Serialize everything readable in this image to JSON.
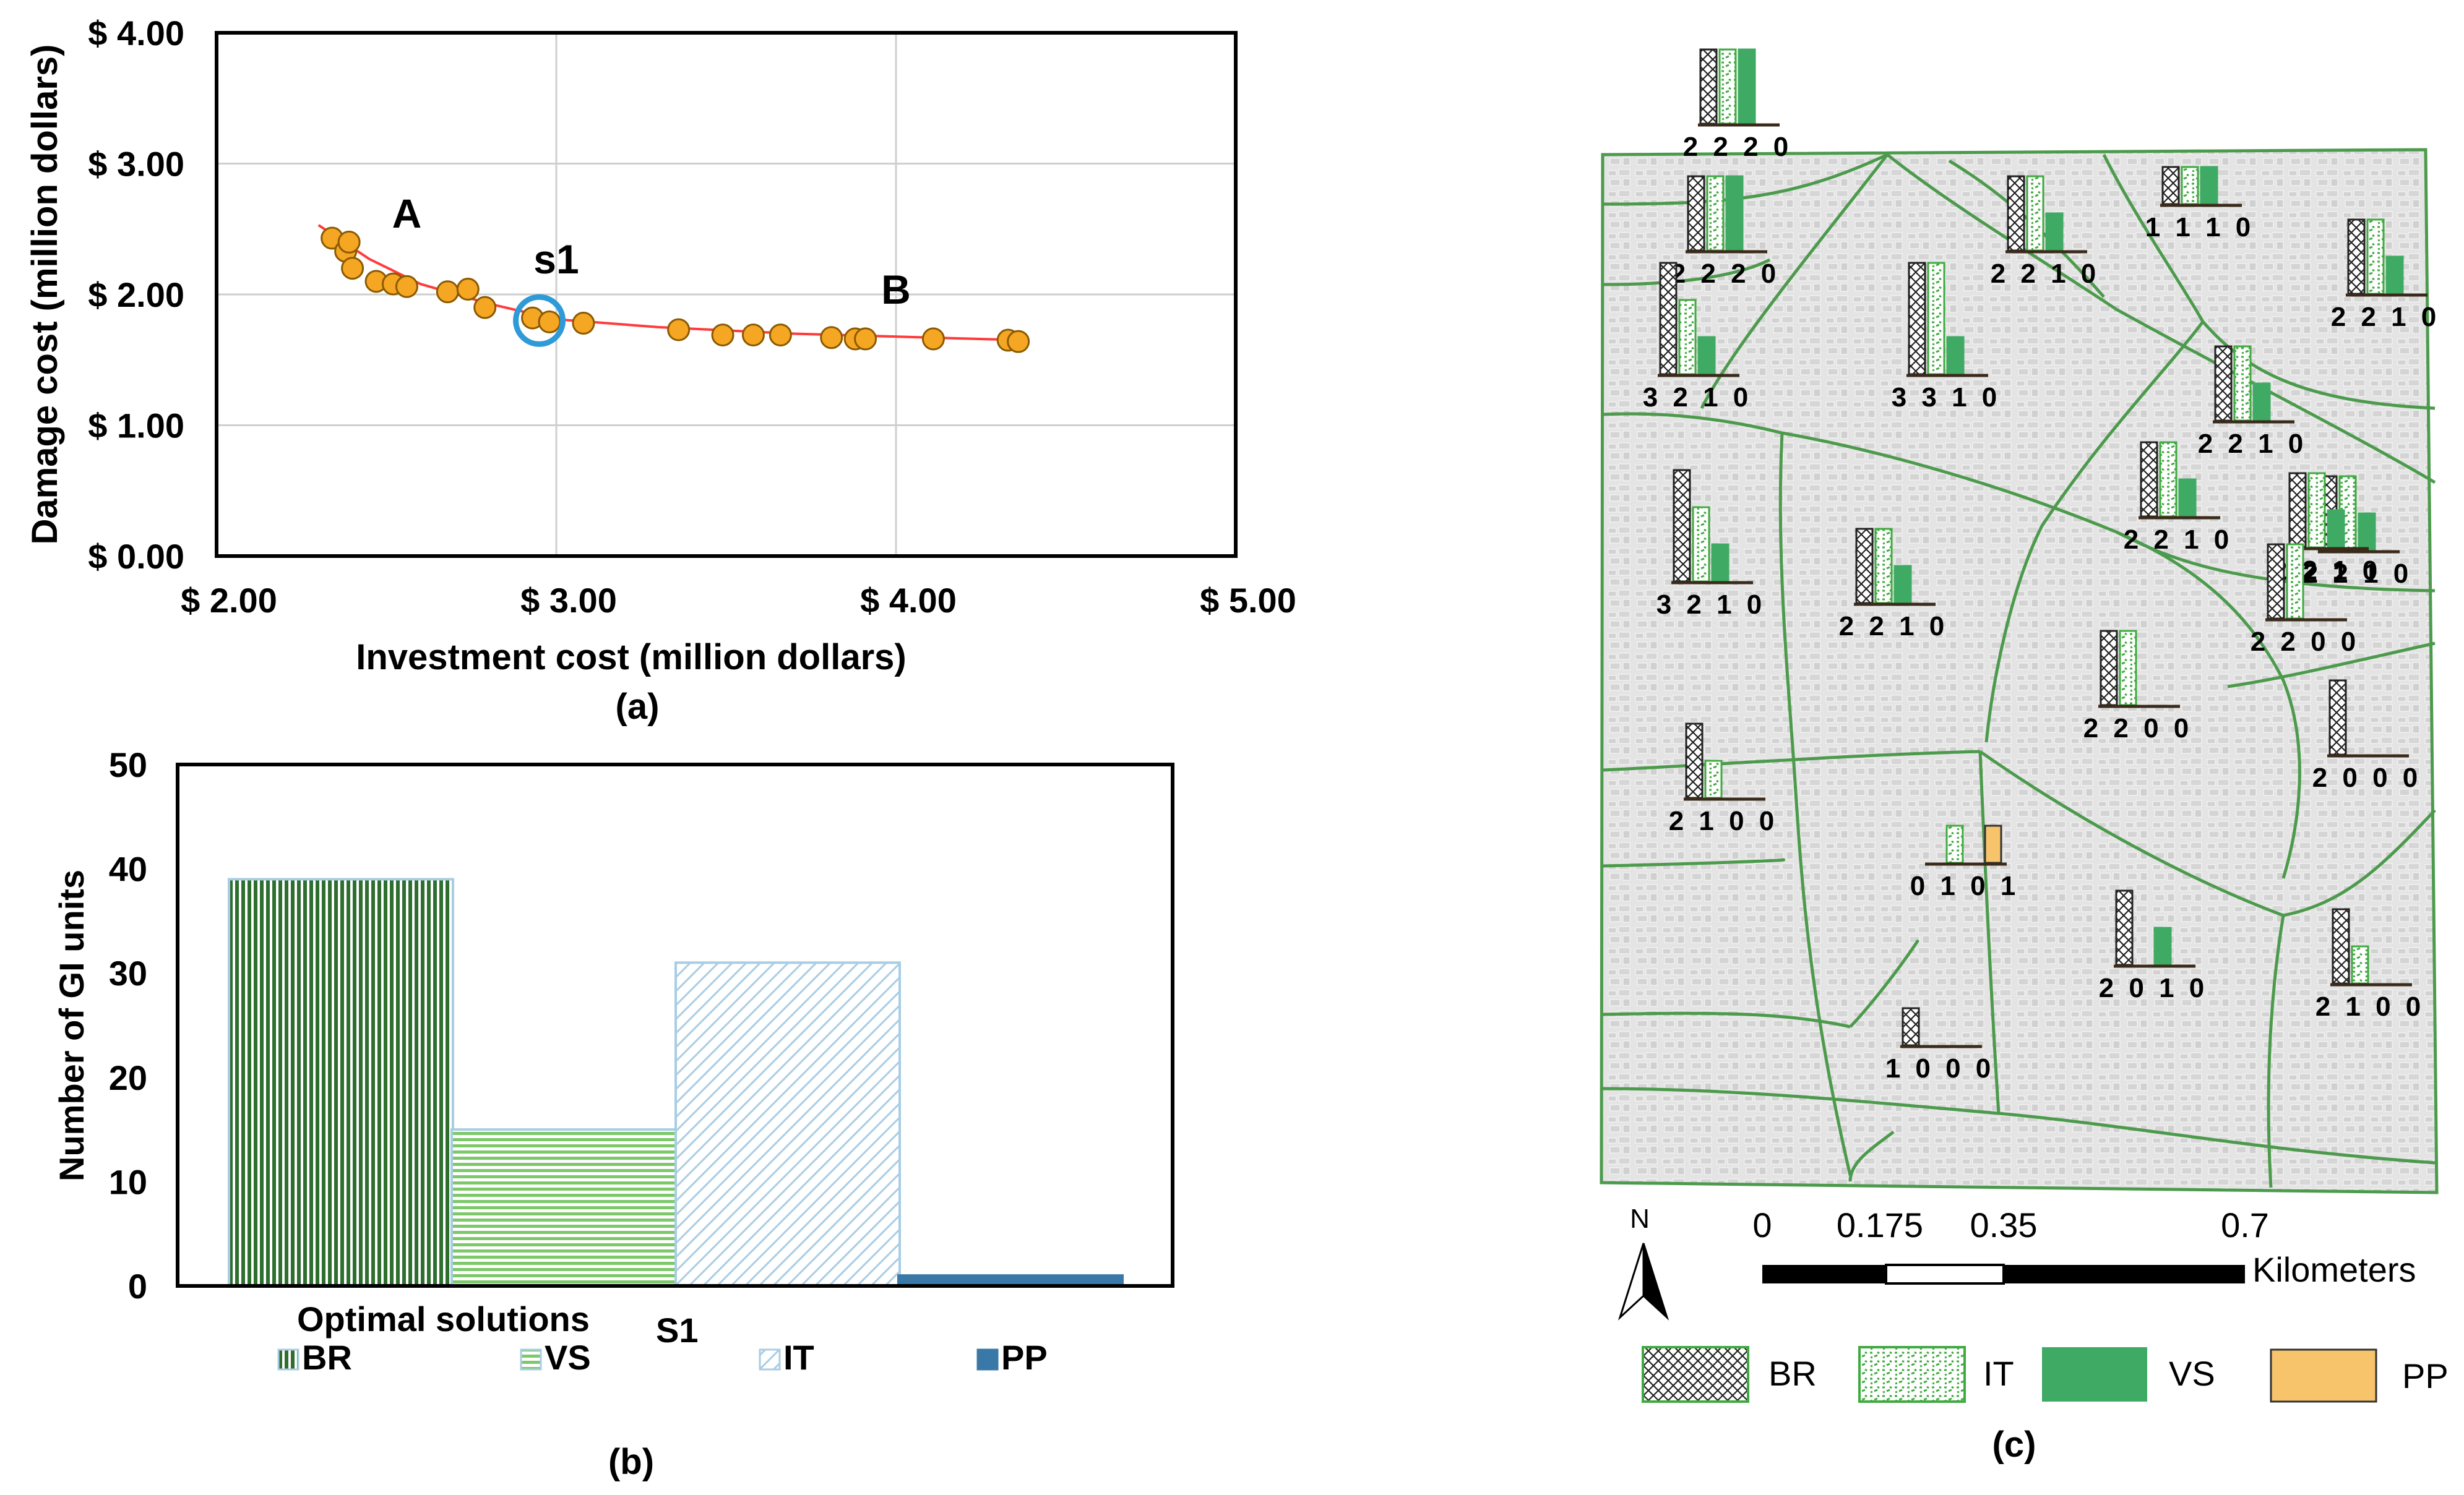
{
  "colors": {
    "point_fill": "#F5A623",
    "point_stroke": "#8A5A00",
    "trend_line": "#FF3B3B",
    "highlight_ring": "#2E9AD8",
    "br_green": "#2E6E2E",
    "vs_green": "#7DC96A",
    "it_blue": "#A9CDE4",
    "pp_blue": "#3A78A8",
    "map_bg": "#E6E6E6",
    "road_green": "#4C9A4C",
    "vs_bar": "#3FAA63",
    "pp_bar": "#F7C46C"
  },
  "chart_data": [
    {
      "type": "scatter",
      "caption": "(a)",
      "title": "",
      "xlabel": "Investment cost (million dollars)",
      "ylabel": "Damage cost (million dollars)",
      "xlim": [
        2.0,
        5.0
      ],
      "ylim": [
        0.0,
        4.0
      ],
      "xticks": [
        2.0,
        3.0,
        4.0,
        5.0
      ],
      "yticks": [
        0.0,
        1.0,
        2.0,
        3.0,
        4.0
      ],
      "xtick_labels": [
        "$ 2.00",
        "$ 3.00",
        "$ 4.00",
        "$ 5.00"
      ],
      "ytick_labels": [
        "$ 0.00",
        "$ 1.00",
        "$ 2.00",
        "$ 3.00",
        "$ 4.00"
      ],
      "grid": true,
      "points": [
        {
          "x": 2.34,
          "y": 2.43
        },
        {
          "x": 2.38,
          "y": 2.33
        },
        {
          "x": 2.39,
          "y": 2.4
        },
        {
          "x": 2.4,
          "y": 2.2
        },
        {
          "x": 2.47,
          "y": 2.1
        },
        {
          "x": 2.52,
          "y": 2.08
        },
        {
          "x": 2.56,
          "y": 2.06
        },
        {
          "x": 2.68,
          "y": 2.02
        },
        {
          "x": 2.74,
          "y": 2.04
        },
        {
          "x": 2.79,
          "y": 1.9
        },
        {
          "x": 2.93,
          "y": 1.82
        },
        {
          "x": 2.98,
          "y": 1.79
        },
        {
          "x": 3.08,
          "y": 1.78
        },
        {
          "x": 3.36,
          "y": 1.73
        },
        {
          "x": 3.49,
          "y": 1.69
        },
        {
          "x": 3.58,
          "y": 1.69
        },
        {
          "x": 3.66,
          "y": 1.69
        },
        {
          "x": 3.81,
          "y": 1.67
        },
        {
          "x": 3.88,
          "y": 1.66
        },
        {
          "x": 3.91,
          "y": 1.66
        },
        {
          "x": 4.11,
          "y": 1.66
        },
        {
          "x": 4.33,
          "y": 1.65
        },
        {
          "x": 4.36,
          "y": 1.64
        }
      ],
      "trend_line": [
        {
          "x": 2.3,
          "y": 2.53
        },
        {
          "x": 2.45,
          "y": 2.27
        },
        {
          "x": 2.6,
          "y": 2.08
        },
        {
          "x": 2.8,
          "y": 1.93
        },
        {
          "x": 3.0,
          "y": 1.81
        },
        {
          "x": 3.3,
          "y": 1.75
        },
        {
          "x": 3.7,
          "y": 1.7
        },
        {
          "x": 4.1,
          "y": 1.67
        },
        {
          "x": 4.38,
          "y": 1.65
        }
      ],
      "highlight": {
        "x": 2.95,
        "y": 1.8
      },
      "annotations": [
        {
          "text": "A",
          "x": 2.56,
          "y": 2.51
        },
        {
          "text": "s1",
          "x": 3.0,
          "y": 2.16
        },
        {
          "text": "B",
          "x": 4.0,
          "y": 1.93
        }
      ]
    },
    {
      "type": "bar",
      "caption": "(b)",
      "title": "",
      "xlabel": "Optimal solutions",
      "category_label": "S1",
      "ylabel": "Number of GI units",
      "ylim": [
        0,
        50
      ],
      "yticks": [
        0,
        10,
        20,
        30,
        40,
        50
      ],
      "ytick_labels": [
        "0",
        "10",
        "20",
        "30",
        "40",
        "50"
      ],
      "categories": [
        "S1"
      ],
      "series": [
        {
          "name": "BR",
          "values": [
            39
          ]
        },
        {
          "name": "VS",
          "values": [
            15
          ]
        },
        {
          "name": "IT",
          "values": [
            31
          ]
        },
        {
          "name": "PP",
          "values": [
            1
          ]
        }
      ]
    },
    {
      "type": "map",
      "caption": "(c)",
      "compass_label": "N",
      "scale_labels": [
        "0",
        "0.175",
        "0.35",
        "0.7"
      ],
      "scale_unit": "Kilometers",
      "legend": [
        "BR",
        "IT",
        "VS",
        "PP"
      ],
      "series_order": [
        "BR",
        "IT",
        "VS",
        "PP"
      ],
      "site_values": [
        {
          "label": "2 2 2 0",
          "values": [
            2,
            2,
            2,
            0
          ]
        },
        {
          "label": "2 2 2 0",
          "values": [
            2,
            2,
            2,
            0
          ]
        },
        {
          "label": "2 2 1 0",
          "values": [
            2,
            2,
            1,
            0
          ]
        },
        {
          "label": "1 1 1 0",
          "values": [
            1,
            1,
            1,
            0
          ]
        },
        {
          "label": "2 2 1 0",
          "values": [
            2,
            2,
            1,
            0
          ]
        },
        {
          "label": "3 2 1 0",
          "values": [
            3,
            2,
            1,
            0
          ]
        },
        {
          "label": "3 3 1 0",
          "values": [
            3,
            3,
            1,
            0
          ]
        },
        {
          "label": "2 2 1 0",
          "values": [
            2,
            2,
            1,
            0
          ]
        },
        {
          "label": "2 2 1 0",
          "values": [
            2,
            2,
            1,
            0
          ]
        },
        {
          "label": "2 2 1 0",
          "values": [
            2,
            2,
            1,
            0
          ]
        },
        {
          "label": "3 2 1 0",
          "values": [
            3,
            2,
            1,
            0
          ]
        },
        {
          "label": "2 2 1 0",
          "values": [
            2,
            2,
            1,
            0
          ]
        },
        {
          "label": "2 2 1 0",
          "values": [
            2,
            2,
            1,
            0
          ]
        },
        {
          "label": "2 2 0 0",
          "values": [
            2,
            2,
            0,
            0
          ]
        },
        {
          "label": "2 2 0 0",
          "values": [
            2,
            2,
            0,
            0
          ]
        },
        {
          "label": "2 0 0 0",
          "values": [
            2,
            0,
            0,
            0
          ]
        },
        {
          "label": "2 1 0 0",
          "values": [
            2,
            1,
            0,
            0
          ]
        },
        {
          "label": "0 1 0 1",
          "values": [
            0,
            1,
            0,
            1
          ]
        },
        {
          "label": "2 0 1 0",
          "values": [
            2,
            0,
            1,
            0
          ]
        },
        {
          "label": "2 1 0 0",
          "values": [
            2,
            1,
            0,
            0
          ]
        },
        {
          "label": "1 0 0 0",
          "values": [
            1,
            0,
            0,
            0
          ]
        }
      ]
    }
  ]
}
